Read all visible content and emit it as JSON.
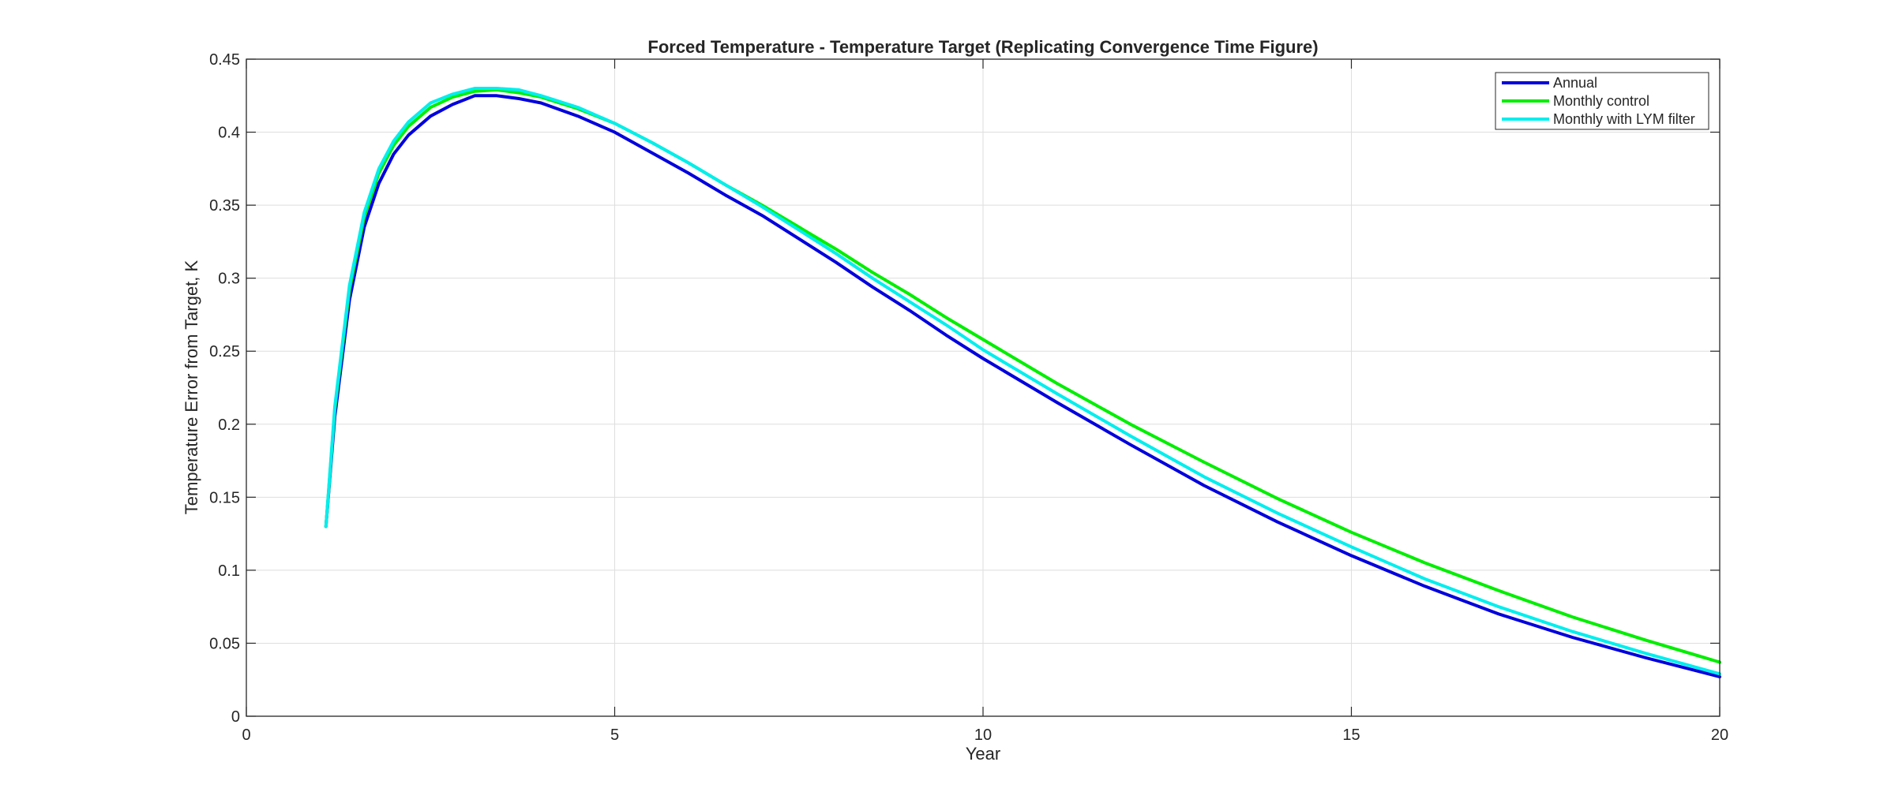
{
  "chart_data": {
    "type": "line",
    "title": "Forced Temperature - Temperature Target (Replicating Convergence Time Figure)",
    "xlabel": "Year",
    "ylabel": "Temperature Error from Target, K",
    "xlim": [
      0,
      20
    ],
    "ylim": [
      0,
      0.45
    ],
    "xticks": [
      0,
      5,
      10,
      15,
      20
    ],
    "xtick_labels": [
      "0",
      "5",
      "10",
      "15",
      "20"
    ],
    "yticks": [
      0,
      0.05,
      0.1,
      0.15,
      0.2,
      0.25,
      0.3,
      0.35,
      0.4,
      0.45
    ],
    "ytick_labels": [
      "0",
      "0.05",
      "0.1",
      "0.15",
      "0.2",
      "0.25",
      "0.3",
      "0.35",
      "0.4",
      "0.45"
    ],
    "grid": true,
    "legend_position": "top-right",
    "series": [
      {
        "name": "Annual",
        "color": "#0000dd",
        "x": [
          1.08,
          1.2,
          1.4,
          1.6,
          1.8,
          2.0,
          2.2,
          2.5,
          2.8,
          3.1,
          3.4,
          3.7,
          4.0,
          4.5,
          5.0,
          5.5,
          6.0,
          6.5,
          7.0,
          7.5,
          8.0,
          8.5,
          9.0,
          9.5,
          10.0,
          11.0,
          12.0,
          13.0,
          14.0,
          15.0,
          16.0,
          17.0,
          18.0,
          19.0,
          20.0
        ],
        "y": [
          0.13,
          0.205,
          0.285,
          0.335,
          0.365,
          0.385,
          0.398,
          0.411,
          0.419,
          0.425,
          0.425,
          0.423,
          0.42,
          0.411,
          0.4,
          0.386,
          0.372,
          0.357,
          0.343,
          0.327,
          0.311,
          0.294,
          0.278,
          0.261,
          0.245,
          0.215,
          0.186,
          0.158,
          0.133,
          0.11,
          0.089,
          0.07,
          0.054,
          0.04,
          0.027
        ]
      },
      {
        "name": "Monthly control",
        "color": "#00ee00",
        "x": [
          1.08,
          1.2,
          1.4,
          1.6,
          1.8,
          2.0,
          2.2,
          2.5,
          2.8,
          3.1,
          3.4,
          3.7,
          4.0,
          4.5,
          5.0,
          5.5,
          6.0,
          6.5,
          7.0,
          7.5,
          8.0,
          8.5,
          9.0,
          9.5,
          10.0,
          11.0,
          12.0,
          13.0,
          14.0,
          15.0,
          16.0,
          17.0,
          18.0,
          19.0,
          20.0
        ],
        "y": [
          0.13,
          0.21,
          0.292,
          0.342,
          0.372,
          0.391,
          0.404,
          0.417,
          0.424,
          0.428,
          0.429,
          0.427,
          0.424,
          0.416,
          0.406,
          0.393,
          0.379,
          0.364,
          0.35,
          0.335,
          0.32,
          0.304,
          0.289,
          0.273,
          0.258,
          0.228,
          0.2,
          0.174,
          0.149,
          0.126,
          0.105,
          0.086,
          0.068,
          0.052,
          0.037
        ]
      },
      {
        "name": "Monthly with LYM filter",
        "color": "#00eeee",
        "x": [
          1.08,
          1.2,
          1.4,
          1.6,
          1.8,
          2.0,
          2.2,
          2.5,
          2.8,
          3.1,
          3.4,
          3.7,
          4.0,
          4.5,
          5.0,
          5.5,
          6.0,
          6.5,
          7.0,
          7.5,
          8.0,
          8.5,
          9.0,
          9.5,
          10.0,
          11.0,
          12.0,
          13.0,
          14.0,
          15.0,
          16.0,
          17.0,
          18.0,
          19.0,
          20.0
        ],
        "y": [
          0.13,
          0.212,
          0.295,
          0.345,
          0.375,
          0.394,
          0.407,
          0.42,
          0.426,
          0.43,
          0.43,
          0.429,
          0.425,
          0.417,
          0.406,
          0.393,
          0.379,
          0.364,
          0.349,
          0.333,
          0.317,
          0.3,
          0.284,
          0.268,
          0.251,
          0.221,
          0.192,
          0.164,
          0.139,
          0.116,
          0.094,
          0.075,
          0.058,
          0.043,
          0.029
        ]
      }
    ]
  }
}
